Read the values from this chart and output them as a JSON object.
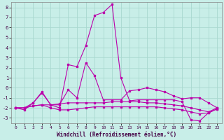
{
  "xlabel": "Windchill (Refroidissement éolien,°C)",
  "xlim": [
    -0.5,
    23.5
  ],
  "ylim": [
    -3.5,
    8.5
  ],
  "xticks": [
    0,
    1,
    2,
    3,
    4,
    5,
    6,
    7,
    8,
    9,
    10,
    11,
    12,
    13,
    14,
    15,
    16,
    17,
    18,
    19,
    20,
    21,
    22,
    23
  ],
  "yticks": [
    -3,
    -2,
    -1,
    0,
    1,
    2,
    3,
    4,
    5,
    6,
    7,
    8
  ],
  "background_color": "#c8eee8",
  "grid_color": "#a8d8d0",
  "line_color": "#bb00aa",
  "line1_x": [
    0,
    1,
    2,
    3,
    4,
    5,
    6,
    7,
    8,
    9,
    10,
    11,
    12,
    13,
    14,
    15,
    16,
    17,
    18,
    19,
    20,
    21,
    22,
    23
  ],
  "line1_y": [
    -2,
    -2.2,
    -1.5,
    -0.5,
    -1.7,
    -2.0,
    2.3,
    2.1,
    4.2,
    7.2,
    7.5,
    8.3,
    1.0,
    -1.3,
    -1.2,
    -1.2,
    -1.2,
    -1.2,
    -1.2,
    -1.4,
    -3.2,
    -3.3,
    -2.5,
    -2.1
  ],
  "line2_x": [
    0,
    1,
    2,
    3,
    4,
    5,
    6,
    7,
    8,
    9,
    10,
    11,
    12,
    13,
    14,
    15,
    16,
    17,
    18,
    19,
    20,
    21,
    22,
    23
  ],
  "line2_y": [
    -2,
    -2,
    -1.5,
    -0.4,
    -1.7,
    -1.7,
    -0.2,
    -1.0,
    2.5,
    1.2,
    -1.2,
    -1.2,
    -1.2,
    -0.3,
    -0.2,
    0.0,
    -0.2,
    -0.4,
    -0.8,
    -1.1,
    -1.0,
    -1.0,
    -1.5,
    -2.0
  ],
  "line3_x": [
    0,
    1,
    2,
    3,
    4,
    5,
    6,
    7,
    8,
    9,
    10,
    11,
    12,
    13,
    14,
    15,
    16,
    17,
    18,
    19,
    20,
    21,
    22,
    23
  ],
  "line3_y": [
    -2,
    -2,
    -1.8,
    -1.7,
    -1.7,
    -1.6,
    -1.5,
    -1.5,
    -1.5,
    -1.5,
    -1.5,
    -1.4,
    -1.4,
    -1.4,
    -1.4,
    -1.5,
    -1.5,
    -1.6,
    -1.7,
    -1.8,
    -2.0,
    -2.2,
    -2.4,
    -2.0
  ],
  "line4_x": [
    0,
    1,
    2,
    3,
    4,
    5,
    6,
    7,
    8,
    9,
    10,
    11,
    12,
    13,
    14,
    15,
    16,
    17,
    18,
    19,
    20,
    21,
    22,
    23
  ],
  "line4_y": [
    -2,
    -2,
    -1.8,
    -1.7,
    -2.0,
    -2.2,
    -2.2,
    -2.1,
    -2.0,
    -1.9,
    -1.9,
    -1.9,
    -1.9,
    -1.9,
    -1.9,
    -1.9,
    -1.9,
    -2.0,
    -2.1,
    -2.2,
    -2.4,
    -2.6,
    -2.5,
    -2.1
  ]
}
